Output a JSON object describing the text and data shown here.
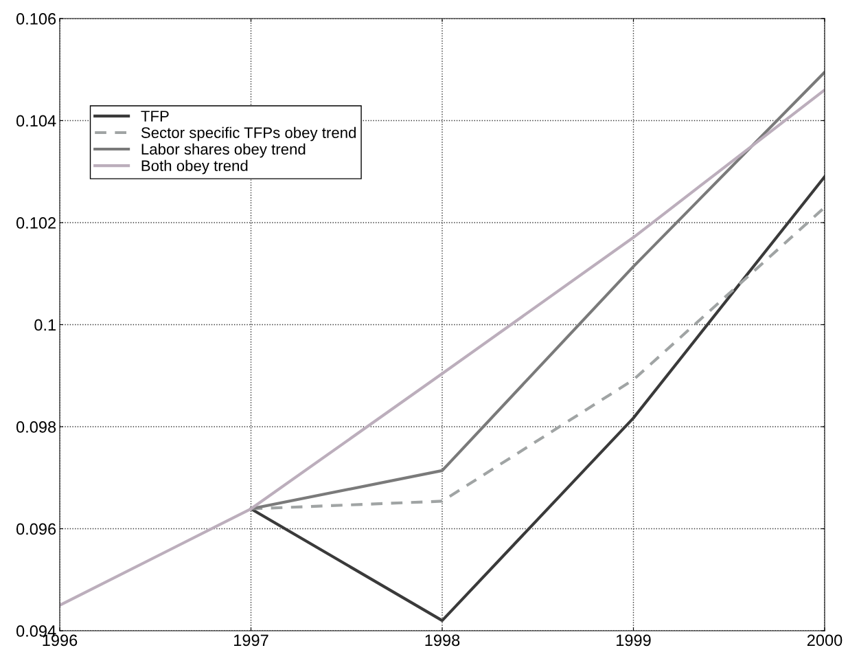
{
  "chart_data": {
    "type": "line",
    "x": [
      1996,
      1997,
      1998,
      1999,
      2000
    ],
    "series": [
      {
        "name": "TFP",
        "color": "#3a3a3a",
        "line_style": "solid",
        "values": [
          null,
          0.09639,
          0.0942,
          0.09817,
          0.1029
        ]
      },
      {
        "name": "Sector specific TFPs obey trend",
        "color": "#a0a4a4",
        "line_style": "dashed",
        "values": [
          null,
          0.09639,
          0.09654,
          0.09892,
          0.1023
        ]
      },
      {
        "name": "Labor shares obey trend",
        "color": "#7a7a7a",
        "line_style": "solid",
        "values": [
          null,
          0.09639,
          0.09714,
          0.10114,
          0.10495
        ]
      },
      {
        "name": "Both obey trend",
        "color": "#bcaebc",
        "line_style": "solid",
        "values": [
          0.0945,
          0.09639,
          0.09904,
          0.10171,
          0.1046
        ]
      }
    ],
    "xlim": [
      1996,
      2000
    ],
    "xticks": [
      1996,
      1997,
      1998,
      1999,
      2000
    ],
    "ylim": [
      0.094,
      0.106
    ],
    "yticks": [
      0.094,
      0.096,
      0.098,
      {
        "value": 0.1,
        "label": "0.1"
      },
      0.102,
      0.104,
      0.106
    ],
    "grid": true,
    "legend": "top left"
  }
}
